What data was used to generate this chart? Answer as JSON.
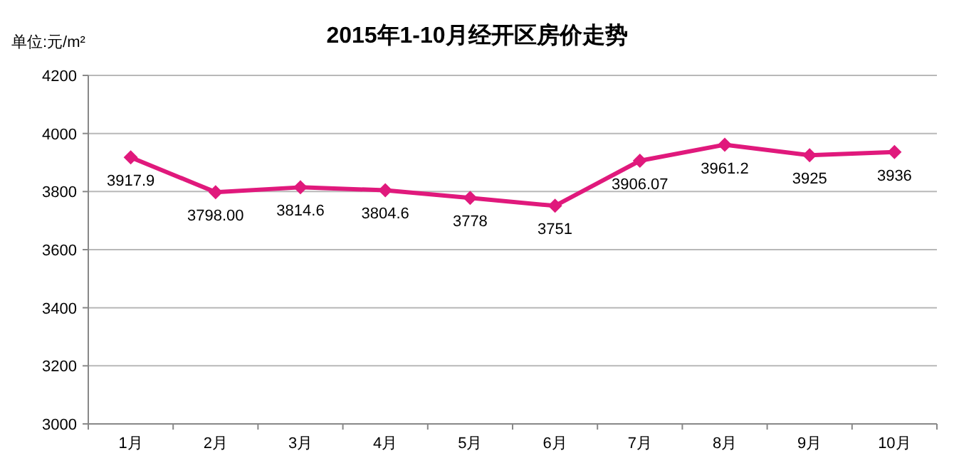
{
  "chart_data": {
    "type": "line",
    "title": "2015年1-10月经开区房价走势",
    "ylabel": "单位:元/m²",
    "categories": [
      "1月",
      "2月",
      "3月",
      "4月",
      "5月",
      "6月",
      "7月",
      "8月",
      "9月",
      "10月"
    ],
    "series": [
      {
        "color": "#e0197c",
        "values": [
          3917.9,
          3798.0,
          3814.6,
          3804.6,
          3778,
          3751,
          3906.07,
          3961.2,
          3925,
          3936
        ],
        "value_labels": [
          "3917.9",
          "3798.00",
          "3814.6",
          "3804.6",
          "3778",
          "3751",
          "3906.07",
          "3961.2",
          "3925",
          "3936"
        ]
      }
    ],
    "ylim": [
      3000,
      4200
    ],
    "yticks": [
      3000,
      3200,
      3400,
      3600,
      3800,
      4000,
      4200
    ],
    "grid": "y",
    "marker": "diamond",
    "line_style": "solid"
  }
}
